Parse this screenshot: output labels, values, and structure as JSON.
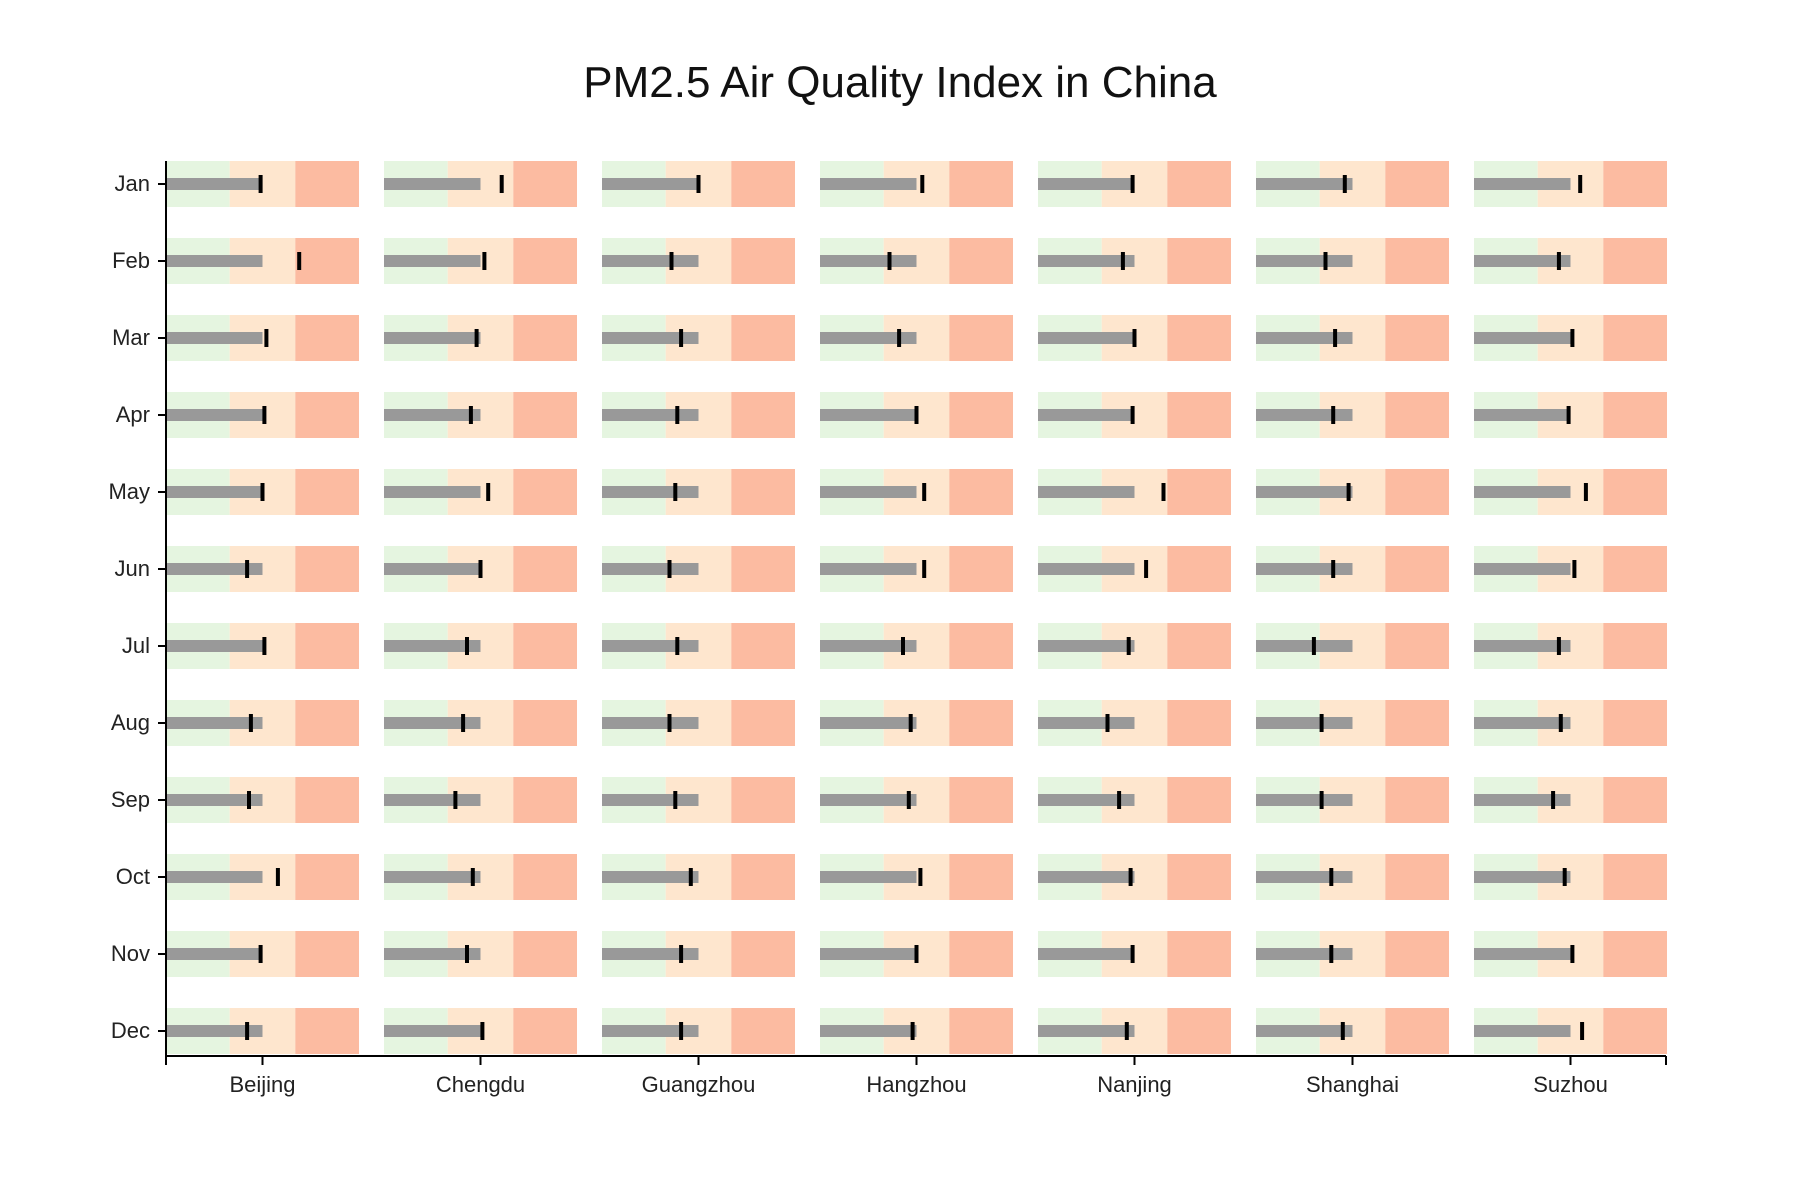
{
  "chart_data": {
    "type": "bullet",
    "title": "PM2.5 Air Quality Index in China",
    "cities": [
      "Beijing",
      "Chengdu",
      "Guangzhou",
      "Hangzhou",
      "Nanjing",
      "Shanghai",
      "Suzhou"
    ],
    "months": [
      "Jan",
      "Feb",
      "Mar",
      "Apr",
      "May",
      "Jun",
      "Jul",
      "Aug",
      "Sep",
      "Oct",
      "Nov",
      "Dec"
    ],
    "qualitative_ranges": {
      "good": [
        0,
        0.33
      ],
      "moderate": [
        0.33,
        0.67
      ],
      "poor": [
        0.67,
        1.0
      ]
    },
    "range_colors": {
      "good": "#e5f5e0",
      "moderate": "#fee6ce",
      "poor": "#fcbba1"
    },
    "bar_color": "#999999",
    "marker_color": "#000000",
    "bar_lengths": {
      "Beijing": [
        0.5,
        0.5,
        0.5,
        0.5,
        0.5,
        0.5,
        0.5,
        0.5,
        0.5,
        0.5,
        0.5,
        0.5
      ],
      "Chengdu": [
        0.5,
        0.5,
        0.5,
        0.5,
        0.5,
        0.5,
        0.5,
        0.5,
        0.5,
        0.5,
        0.5,
        0.5
      ],
      "Guangzhou": [
        0.5,
        0.5,
        0.5,
        0.5,
        0.5,
        0.5,
        0.5,
        0.5,
        0.5,
        0.5,
        0.5,
        0.5
      ],
      "Hangzhou": [
        0.5,
        0.5,
        0.5,
        0.5,
        0.5,
        0.5,
        0.5,
        0.5,
        0.5,
        0.5,
        0.5,
        0.5
      ],
      "Nanjing": [
        0.5,
        0.5,
        0.5,
        0.5,
        0.5,
        0.5,
        0.5,
        0.5,
        0.5,
        0.5,
        0.5,
        0.5
      ],
      "Shanghai": [
        0.5,
        0.5,
        0.5,
        0.5,
        0.5,
        0.5,
        0.5,
        0.5,
        0.5,
        0.5,
        0.5,
        0.5
      ],
      "Suzhou": [
        0.5,
        0.5,
        0.5,
        0.5,
        0.5,
        0.5,
        0.5,
        0.5,
        0.5,
        0.5,
        0.5,
        0.5
      ]
    },
    "markers": {
      "Beijing": [
        0.49,
        0.69,
        0.52,
        0.51,
        0.5,
        0.42,
        0.51,
        0.44,
        0.43,
        0.58,
        0.49,
        0.42
      ],
      "Chengdu": [
        0.61,
        0.52,
        0.48,
        0.45,
        0.54,
        0.5,
        0.43,
        0.41,
        0.37,
        0.46,
        0.43,
        0.51
      ],
      "Guangzhou": [
        0.5,
        0.36,
        0.41,
        0.39,
        0.38,
        0.35,
        0.39,
        0.35,
        0.38,
        0.46,
        0.41,
        0.41
      ],
      "Hangzhou": [
        0.53,
        0.36,
        0.41,
        0.5,
        0.54,
        0.54,
        0.43,
        0.47,
        0.46,
        0.52,
        0.5,
        0.48
      ],
      "Nanjing": [
        0.49,
        0.44,
        0.5,
        0.49,
        0.65,
        0.56,
        0.47,
        0.36,
        0.42,
        0.48,
        0.49,
        0.46
      ],
      "Shanghai": [
        0.46,
        0.36,
        0.41,
        0.4,
        0.48,
        0.4,
        0.3,
        0.34,
        0.34,
        0.39,
        0.39,
        0.45
      ],
      "Suzhou": [
        0.55,
        0.44,
        0.51,
        0.49,
        0.58,
        0.52,
        0.44,
        0.45,
        0.41,
        0.47,
        0.51,
        0.56
      ]
    }
  }
}
